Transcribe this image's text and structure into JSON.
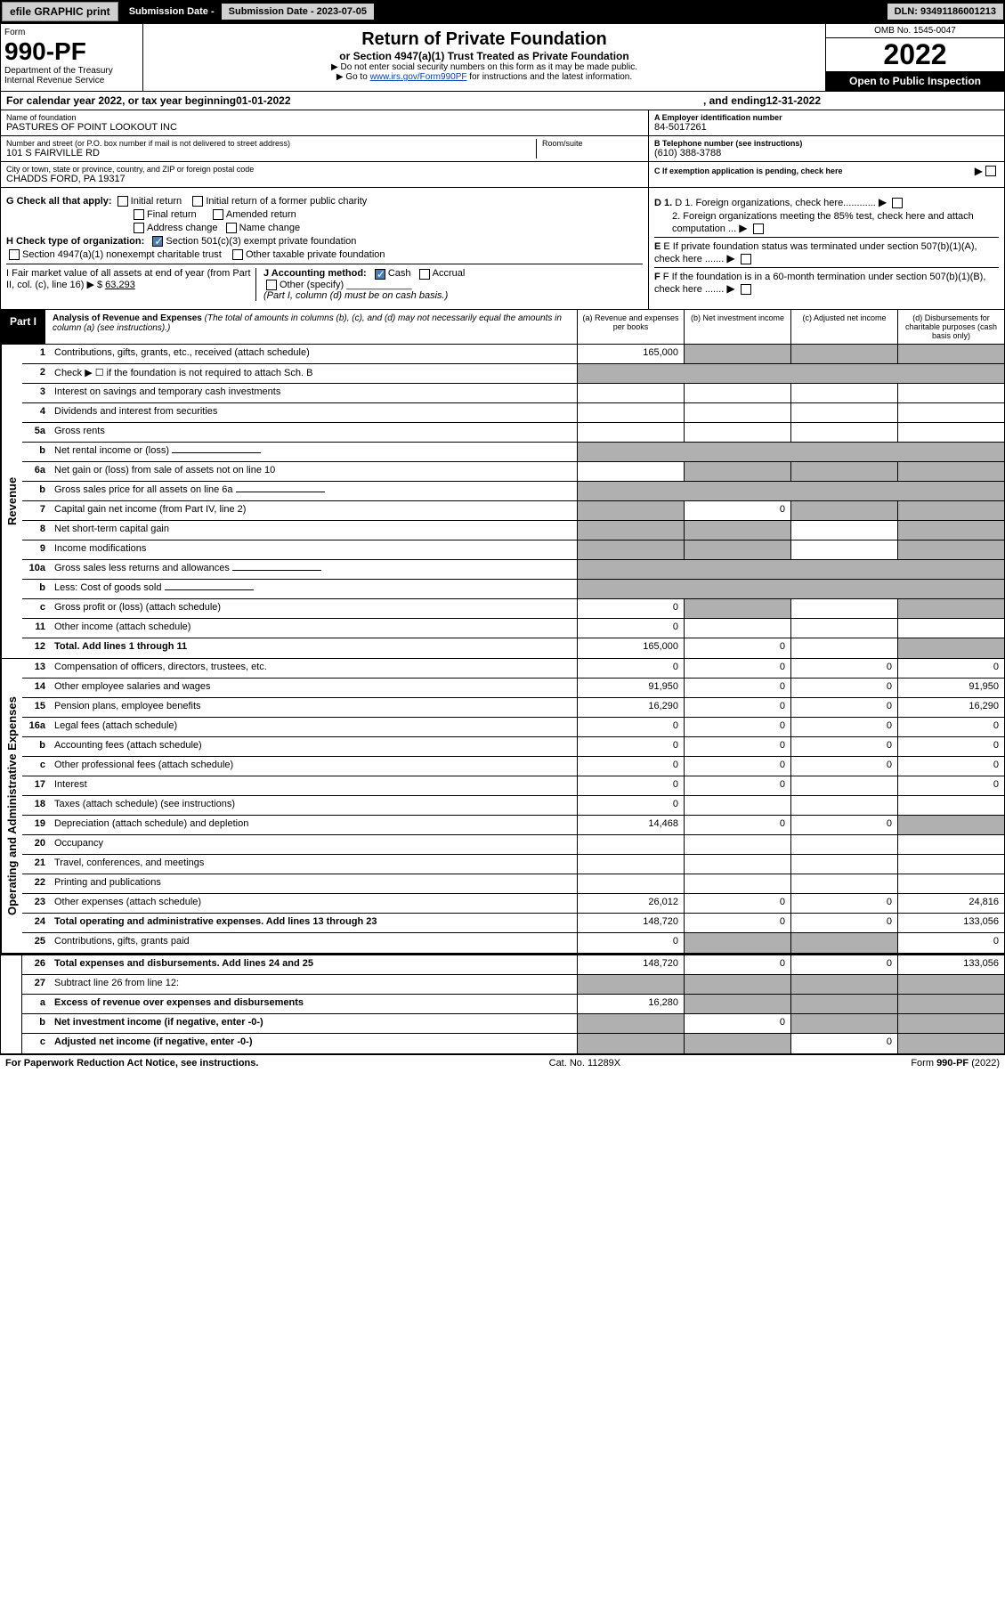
{
  "topbar": {
    "efile": "efile GRAPHIC print",
    "sub_label": "Submission Date - 2023-07-05",
    "dln_label": "DLN: 93491186001213"
  },
  "header": {
    "form_label": "Form",
    "form_num": "990-PF",
    "dept": "Department of the Treasury",
    "irs": "Internal Revenue Service",
    "title": "Return of Private Foundation",
    "subtitle": "or Section 4947(a)(1) Trust Treated as Private Foundation",
    "note1": "▶ Do not enter social security numbers on this form as it may be made public.",
    "note2_pre": "▶ Go to ",
    "note2_link": "www.irs.gov/Form990PF",
    "note2_post": " for instructions and the latest information.",
    "omb": "OMB No. 1545-0047",
    "year": "2022",
    "open": "Open to Public Inspection"
  },
  "calendar": {
    "pre": "For calendar year 2022, or tax year beginning ",
    "begin": "01-01-2022",
    "mid": " , and ending ",
    "end": "12-31-2022"
  },
  "entity": {
    "name_label": "Name of foundation",
    "name": "PASTURES OF POINT LOOKOUT INC",
    "addr_label": "Number and street (or P.O. box number if mail is not delivered to street address)",
    "addr": "101 S FAIRVILLE RD",
    "room_label": "Room/suite",
    "city_label": "City or town, state or province, country, and ZIP or foreign postal code",
    "city": "CHADDS FORD, PA  19317",
    "ein_label": "A Employer identification number",
    "ein": "84-5017261",
    "phone_label": "B Telephone number (see instructions)",
    "phone": "(610) 388-3788",
    "c_label": "C If exemption application is pending, check here",
    "d1": "D 1. Foreign organizations, check here............",
    "d2": "2. Foreign organizations meeting the 85% test, check here and attach computation ...",
    "e_label": "E If private foundation status was terminated under section 507(b)(1)(A), check here .......",
    "f_label": "F If the foundation is in a 60-month termination under section 507(b)(1)(B), check here .......",
    "g_label": "G Check all that apply:",
    "g_opts": [
      "Initial return",
      "Initial return of a former public charity",
      "Final return",
      "Amended return",
      "Address change",
      "Name change"
    ],
    "h_label": "H Check type of organization:",
    "h_opt1": "Section 501(c)(3) exempt private foundation",
    "h_opt2": "Section 4947(a)(1) nonexempt charitable trust",
    "h_opt3": "Other taxable private foundation",
    "i_label": "I Fair market value of all assets at end of year (from Part II, col. (c), line 16) ▶ $",
    "i_val": "63,293",
    "j_label": "J Accounting method:",
    "j_cash": "Cash",
    "j_accrual": "Accrual",
    "j_other": "Other (specify)",
    "j_note": "(Part I, column (d) must be on cash basis.)"
  },
  "part1": {
    "label": "Part I",
    "title": "Analysis of Revenue and Expenses",
    "note": "(The total of amounts in columns (b), (c), and (d) may not necessarily equal the amounts in column (a) (see instructions).)",
    "col_a": "(a) Revenue and expenses per books",
    "col_b": "(b) Net investment income",
    "col_c": "(c) Adjusted net income",
    "col_d": "(d) Disbursements for charitable purposes (cash basis only)"
  },
  "sides": {
    "revenue": "Revenue",
    "opex": "Operating and Administrative Expenses"
  },
  "rows": [
    {
      "n": "1",
      "d": "Contributions, gifts, grants, etc., received (attach schedule)",
      "a": "165,000",
      "b_shade": true,
      "c_shade": true,
      "d_shade": true
    },
    {
      "n": "2",
      "d": "Check ▶ ☐ if the foundation is not required to attach Sch. B",
      "merge": true
    },
    {
      "n": "3",
      "d": "Interest on savings and temporary cash investments"
    },
    {
      "n": "4",
      "d": "Dividends and interest from securities"
    },
    {
      "n": "5a",
      "d": "Gross rents"
    },
    {
      "n": "b",
      "d": "Net rental income or (loss)",
      "merge_after": true
    },
    {
      "n": "6a",
      "d": "Net gain or (loss) from sale of assets not on line 10",
      "b_shade": true,
      "c_shade": true,
      "d_shade": true
    },
    {
      "n": "b",
      "d": "Gross sales price for all assets on line 6a",
      "merge_after": true
    },
    {
      "n": "7",
      "d": "Capital gain net income (from Part IV, line 2)",
      "a_shade": true,
      "b": "0",
      "c_shade": true,
      "d_shade": true
    },
    {
      "n": "8",
      "d": "Net short-term capital gain",
      "a_shade": true,
      "b_shade": true,
      "d_shade": true
    },
    {
      "n": "9",
      "d": "Income modifications",
      "a_shade": true,
      "b_shade": true,
      "d_shade": true
    },
    {
      "n": "10a",
      "d": "Gross sales less returns and allowances",
      "merge_after": true
    },
    {
      "n": "b",
      "d": "Less: Cost of goods sold",
      "merge_after": true
    },
    {
      "n": "c",
      "d": "Gross profit or (loss) (attach schedule)",
      "a": "0",
      "b_shade": true,
      "d_shade": true
    },
    {
      "n": "11",
      "d": "Other income (attach schedule)",
      "a": "0"
    },
    {
      "n": "12",
      "d": "Total. Add lines 1 through 11",
      "bold": true,
      "a": "165,000",
      "b": "0",
      "d_shade": true
    },
    {
      "n": "13",
      "d": "Compensation of officers, directors, trustees, etc.",
      "a": "0",
      "b": "0",
      "c": "0",
      "e": "0"
    },
    {
      "n": "14",
      "d": "Other employee salaries and wages",
      "a": "91,950",
      "b": "0",
      "c": "0",
      "e": "91,950"
    },
    {
      "n": "15",
      "d": "Pension plans, employee benefits",
      "a": "16,290",
      "b": "0",
      "c": "0",
      "e": "16,290"
    },
    {
      "n": "16a",
      "d": "Legal fees (attach schedule)",
      "a": "0",
      "b": "0",
      "c": "0",
      "e": "0"
    },
    {
      "n": "b",
      "d": "Accounting fees (attach schedule)",
      "a": "0",
      "b": "0",
      "c": "0",
      "e": "0"
    },
    {
      "n": "c",
      "d": "Other professional fees (attach schedule)",
      "a": "0",
      "b": "0",
      "c": "0",
      "e": "0"
    },
    {
      "n": "17",
      "d": "Interest",
      "a": "0",
      "b": "0",
      "e": "0"
    },
    {
      "n": "18",
      "d": "Taxes (attach schedule) (see instructions)",
      "a": "0"
    },
    {
      "n": "19",
      "d": "Depreciation (attach schedule) and depletion",
      "a": "14,468",
      "b": "0",
      "c": "0",
      "d_shade": true
    },
    {
      "n": "20",
      "d": "Occupancy"
    },
    {
      "n": "21",
      "d": "Travel, conferences, and meetings"
    },
    {
      "n": "22",
      "d": "Printing and publications"
    },
    {
      "n": "23",
      "d": "Other expenses (attach schedule)",
      "a": "26,012",
      "b": "0",
      "c": "0",
      "e": "24,816"
    },
    {
      "n": "24",
      "d": "Total operating and administrative expenses. Add lines 13 through 23",
      "bold": true,
      "a": "148,720",
      "b": "0",
      "c": "0",
      "e": "133,056"
    },
    {
      "n": "25",
      "d": "Contributions, gifts, grants paid",
      "a": "0",
      "b_shade": true,
      "c_shade": true,
      "e": "0"
    },
    {
      "n": "26",
      "d": "Total expenses and disbursements. Add lines 24 and 25",
      "bold": true,
      "a": "148,720",
      "b": "0",
      "c": "0",
      "e": "133,056"
    },
    {
      "n": "27",
      "d": "Subtract line 26 from line 12:",
      "a_shade": true,
      "b_shade": true,
      "c_shade": true,
      "d_shade": true
    },
    {
      "n": "a",
      "d": "Excess of revenue over expenses and disbursements",
      "bold": true,
      "a": "16,280",
      "b_shade": true,
      "c_shade": true,
      "d_shade": true
    },
    {
      "n": "b",
      "d": "Net investment income (if negative, enter -0-)",
      "bold": true,
      "a_shade": true,
      "b": "0",
      "c_shade": true,
      "d_shade": true
    },
    {
      "n": "c",
      "d": "Adjusted net income (if negative, enter -0-)",
      "bold": true,
      "a_shade": true,
      "b_shade": true,
      "c": "0",
      "d_shade": true
    }
  ],
  "footer": {
    "left": "For Paperwork Reduction Act Notice, see instructions.",
    "mid": "Cat. No. 11289X",
    "right": "Form 990-PF (2022)"
  }
}
